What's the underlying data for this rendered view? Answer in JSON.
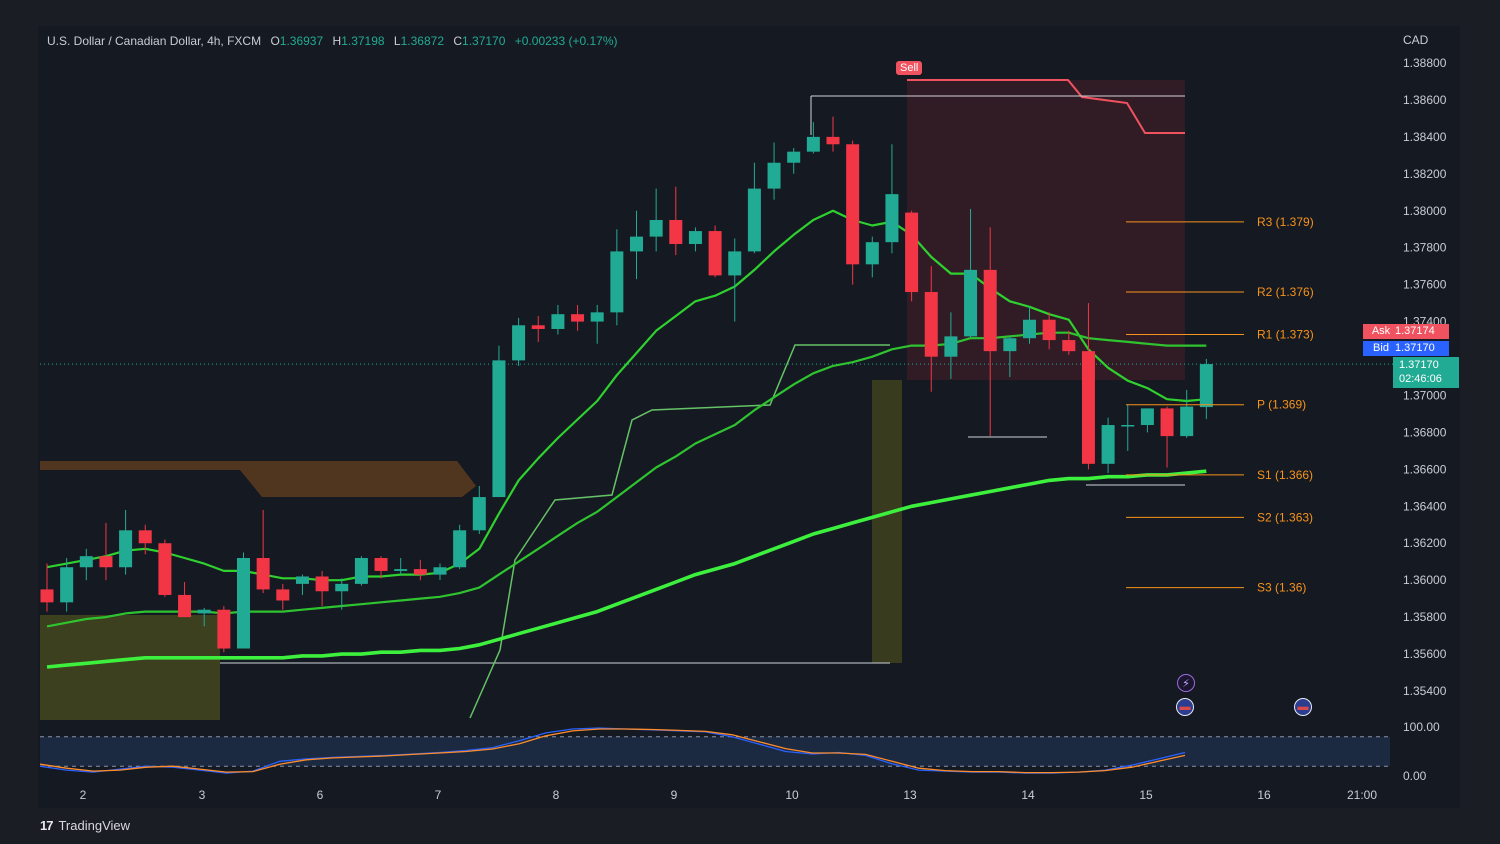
{
  "legend": {
    "symbol": "U.S. Dollar / Canadian Dollar, 4h, FXCM",
    "open_key": "O",
    "open": "1.36937",
    "high_key": "H",
    "high": "1.37198",
    "low_key": "L",
    "low": "1.36872",
    "close_key": "C",
    "close": "1.37170",
    "change": "+0.00233 (+0.17%)"
  },
  "currency": "CAD",
  "ask": {
    "label": "Ask",
    "value": "1.37174"
  },
  "bid": {
    "label": "Bid",
    "value": "1.37170"
  },
  "last": {
    "price": "1.37170",
    "countdown": "02:46:06"
  },
  "sell_label": "Sell",
  "brand": "TradingView",
  "colors": {
    "up": "#22ab94",
    "down": "#f23645",
    "ma": "#33cc33",
    "pivot": "#f7931a",
    "sell_zone": "#f23645"
  },
  "chart_data": {
    "type": "candlestick",
    "y_axis": {
      "ticks": [
        "1.38800",
        "1.38600",
        "1.38400",
        "1.38200",
        "1.38000",
        "1.37800",
        "1.37600",
        "1.37400",
        "1.37000",
        "1.36800",
        "1.36600",
        "1.36400",
        "1.36200",
        "1.36000",
        "1.35800",
        "1.35600",
        "1.35400"
      ],
      "ylim": [
        1.353,
        1.3895
      ]
    },
    "x_axis": {
      "labels": [
        "2",
        "3",
        "6",
        "7",
        "8",
        "9",
        "10",
        "13",
        "14",
        "15",
        "16",
        "21:00"
      ]
    },
    "candles": [
      {
        "x": 0,
        "o": 1.3595,
        "h": 1.3609,
        "l": 1.3583,
        "c": 1.3588
      },
      {
        "x": 1,
        "o": 1.3588,
        "h": 1.3612,
        "l": 1.3583,
        "c": 1.3607
      },
      {
        "x": 2,
        "o": 1.3607,
        "h": 1.3617,
        "l": 1.36,
        "c": 1.3613
      },
      {
        "x": 3,
        "o": 1.3613,
        "h": 1.3631,
        "l": 1.36,
        "c": 1.3607
      },
      {
        "x": 4,
        "o": 1.3607,
        "h": 1.3638,
        "l": 1.3603,
        "c": 1.3627
      },
      {
        "x": 5,
        "o": 1.3627,
        "h": 1.363,
        "l": 1.3614,
        "c": 1.362
      },
      {
        "x": 6,
        "o": 1.362,
        "h": 1.3622,
        "l": 1.3591,
        "c": 1.3592
      },
      {
        "x": 7,
        "o": 1.3592,
        "h": 1.3599,
        "l": 1.358,
        "c": 1.358
      },
      {
        "x": 8,
        "o": 1.3582,
        "h": 1.3585,
        "l": 1.3575,
        "c": 1.3584
      },
      {
        "x": 9,
        "o": 1.3584,
        "h": 1.3586,
        "l": 1.3561,
        "c": 1.3563
      },
      {
        "x": 10,
        "o": 1.3563,
        "h": 1.3615,
        "l": 1.3563,
        "c": 1.3612
      },
      {
        "x": 11,
        "o": 1.3612,
        "h": 1.3638,
        "l": 1.3593,
        "c": 1.3595
      },
      {
        "x": 12,
        "o": 1.3595,
        "h": 1.3598,
        "l": 1.3584,
        "c": 1.3589
      },
      {
        "x": 13,
        "o": 1.3598,
        "h": 1.3603,
        "l": 1.3592,
        "c": 1.3602
      },
      {
        "x": 14,
        "o": 1.3602,
        "h": 1.3605,
        "l": 1.3586,
        "c": 1.3594
      },
      {
        "x": 15,
        "o": 1.3594,
        "h": 1.3601,
        "l": 1.3584,
        "c": 1.3598
      },
      {
        "x": 16,
        "o": 1.3598,
        "h": 1.3613,
        "l": 1.3597,
        "c": 1.3612
      },
      {
        "x": 17,
        "o": 1.3612,
        "h": 1.3613,
        "l": 1.3601,
        "c": 1.3605
      },
      {
        "x": 18,
        "o": 1.3605,
        "h": 1.3612,
        "l": 1.3603,
        "c": 1.3606
      },
      {
        "x": 19,
        "o": 1.3606,
        "h": 1.3611,
        "l": 1.36,
        "c": 1.3603
      },
      {
        "x": 20,
        "o": 1.3603,
        "h": 1.3609,
        "l": 1.36,
        "c": 1.3607
      },
      {
        "x": 21,
        "o": 1.3607,
        "h": 1.363,
        "l": 1.3606,
        "c": 1.3627
      },
      {
        "x": 22,
        "o": 1.3627,
        "h": 1.3651,
        "l": 1.3625,
        "c": 1.3645
      },
      {
        "x": 23,
        "o": 1.3645,
        "h": 1.3727,
        "l": 1.3645,
        "c": 1.3719
      },
      {
        "x": 24,
        "o": 1.3719,
        "h": 1.3742,
        "l": 1.3716,
        "c": 1.3738
      },
      {
        "x": 25,
        "o": 1.3738,
        "h": 1.3743,
        "l": 1.3729,
        "c": 1.3736
      },
      {
        "x": 26,
        "o": 1.3736,
        "h": 1.3749,
        "l": 1.3733,
        "c": 1.3744
      },
      {
        "x": 27,
        "o": 1.3744,
        "h": 1.3749,
        "l": 1.3735,
        "c": 1.374
      },
      {
        "x": 28,
        "o": 1.374,
        "h": 1.3749,
        "l": 1.3728,
        "c": 1.3745
      },
      {
        "x": 29,
        "o": 1.3745,
        "h": 1.379,
        "l": 1.3738,
        "c": 1.3778
      },
      {
        "x": 30,
        "o": 1.3778,
        "h": 1.38,
        "l": 1.3763,
        "c": 1.3786
      },
      {
        "x": 31,
        "o": 1.3786,
        "h": 1.3812,
        "l": 1.3778,
        "c": 1.3795
      },
      {
        "x": 32,
        "o": 1.3795,
        "h": 1.3813,
        "l": 1.3776,
        "c": 1.3782
      },
      {
        "x": 33,
        "o": 1.3782,
        "h": 1.3791,
        "l": 1.3778,
        "c": 1.3789
      },
      {
        "x": 34,
        "o": 1.3789,
        "h": 1.3792,
        "l": 1.3764,
        "c": 1.3765
      },
      {
        "x": 35,
        "o": 1.3765,
        "h": 1.3785,
        "l": 1.374,
        "c": 1.3778
      },
      {
        "x": 36,
        "o": 1.3778,
        "h": 1.3826,
        "l": 1.3777,
        "c": 1.3812
      },
      {
        "x": 37,
        "o": 1.3812,
        "h": 1.3837,
        "l": 1.3806,
        "c": 1.3826
      },
      {
        "x": 38,
        "o": 1.3826,
        "h": 1.3834,
        "l": 1.382,
        "c": 1.3832
      },
      {
        "x": 39,
        "o": 1.3832,
        "h": 1.3848,
        "l": 1.3831,
        "c": 1.384
      },
      {
        "x": 40,
        "o": 1.384,
        "h": 1.3851,
        "l": 1.3832,
        "c": 1.3836
      },
      {
        "x": 41,
        "o": 1.3836,
        "h": 1.3838,
        "l": 1.376,
        "c": 1.3771
      },
      {
        "x": 42,
        "o": 1.3771,
        "h": 1.3786,
        "l": 1.3764,
        "c": 1.3783
      },
      {
        "x": 43,
        "o": 1.3783,
        "h": 1.3836,
        "l": 1.3777,
        "c": 1.3809
      },
      {
        "x": 44,
        "o": 1.3799,
        "h": 1.38,
        "l": 1.3751,
        "c": 1.3756
      },
      {
        "x": 45,
        "o": 1.3756,
        "h": 1.377,
        "l": 1.3702,
        "c": 1.3721
      },
      {
        "x": 46,
        "o": 1.3721,
        "h": 1.3745,
        "l": 1.3709,
        "c": 1.3732
      },
      {
        "x": 47,
        "o": 1.3732,
        "h": 1.3801,
        "l": 1.3731,
        "c": 1.3768
      },
      {
        "x": 48,
        "o": 1.3768,
        "h": 1.3791,
        "l": 1.3678,
        "c": 1.3724
      },
      {
        "x": 49,
        "o": 1.3724,
        "h": 1.3732,
        "l": 1.371,
        "c": 1.3731
      },
      {
        "x": 50,
        "o": 1.3731,
        "h": 1.3748,
        "l": 1.3728,
        "c": 1.3741
      },
      {
        "x": 51,
        "o": 1.3741,
        "h": 1.3745,
        "l": 1.3725,
        "c": 1.373
      },
      {
        "x": 52,
        "o": 1.373,
        "h": 1.3735,
        "l": 1.3722,
        "c": 1.3724
      },
      {
        "x": 53,
        "o": 1.3724,
        "h": 1.375,
        "l": 1.366,
        "c": 1.3663
      },
      {
        "x": 54,
        "o": 1.3663,
        "h": 1.3688,
        "l": 1.3658,
        "c": 1.3684
      },
      {
        "x": 55,
        "o": 1.3684,
        "h": 1.3695,
        "l": 1.367,
        "c": 1.3684
      },
      {
        "x": 56,
        "o": 1.3684,
        "h": 1.3693,
        "l": 1.368,
        "c": 1.3693
      },
      {
        "x": 57,
        "o": 1.3693,
        "h": 1.3694,
        "l": 1.3661,
        "c": 1.3678
      },
      {
        "x": 58,
        "o": 1.3678,
        "h": 1.3703,
        "l": 1.3677,
        "c": 1.3694
      },
      {
        "x": 59,
        "o": 1.36937,
        "h": 1.37198,
        "l": 1.36872,
        "c": 1.3717
      }
    ],
    "moving_averages": [
      {
        "values": [
          1.3607,
          1.3609,
          1.3611,
          1.3613,
          1.3616,
          1.3617,
          1.3615,
          1.3612,
          1.3609,
          1.3605,
          1.3605,
          1.3603,
          1.3601,
          1.3601,
          1.36,
          1.36,
          1.3602,
          1.3602,
          1.3603,
          1.3603,
          1.3604,
          1.3609,
          1.3617,
          1.3636,
          1.3654,
          1.3666,
          1.3677,
          1.3687,
          1.3697,
          1.3711,
          1.3723,
          1.3735,
          1.3743,
          1.3751,
          1.3754,
          1.3759,
          1.3768,
          1.3778,
          1.3787,
          1.3795,
          1.38,
          1.3795,
          1.3792,
          1.3794,
          1.3787,
          1.3775,
          1.3766,
          1.3766,
          1.3758,
          1.3751,
          1.3748,
          1.3744,
          1.3741,
          1.3725,
          1.3715,
          1.3708,
          1.3704,
          1.3698,
          1.3697,
          1.3698
        ]
      },
      {
        "values": [
          1.3575,
          1.3577,
          1.3579,
          1.358,
          1.3582,
          1.3583,
          1.3583,
          1.3583,
          1.3583,
          1.3582,
          1.3583,
          1.3583,
          1.3583,
          1.3584,
          1.3585,
          1.3586,
          1.3587,
          1.3588,
          1.3589,
          1.359,
          1.3591,
          1.3593,
          1.3596,
          1.3603,
          1.361,
          1.3617,
          1.3624,
          1.3631,
          1.3637,
          1.3645,
          1.3653,
          1.3661,
          1.3667,
          1.3674,
          1.3679,
          1.3684,
          1.3692,
          1.3699,
          1.3706,
          1.3712,
          1.3716,
          1.3718,
          1.3721,
          1.3725,
          1.3727,
          1.3727,
          1.3728,
          1.3731,
          1.3731,
          1.3732,
          1.3733,
          1.3734,
          1.3734,
          1.3731,
          1.373,
          1.3729,
          1.3728,
          1.3727,
          1.3727,
          1.3727
        ]
      },
      {
        "values": [
          1.3553,
          1.3554,
          1.3555,
          1.3556,
          1.3557,
          1.3558,
          1.3558,
          1.3558,
          1.3558,
          1.3558,
          1.3558,
          1.3558,
          1.3558,
          1.3559,
          1.3559,
          1.356,
          1.356,
          1.3561,
          1.3561,
          1.3562,
          1.3562,
          1.3563,
          1.3565,
          1.3568,
          1.3571,
          1.3574,
          1.3577,
          1.358,
          1.3583,
          1.3587,
          1.3591,
          1.3595,
          1.3599,
          1.3603,
          1.3606,
          1.3609,
          1.3613,
          1.3617,
          1.3621,
          1.3625,
          1.3628,
          1.3631,
          1.3634,
          1.3637,
          1.364,
          1.3642,
          1.3644,
          1.3646,
          1.3648,
          1.365,
          1.3652,
          1.3654,
          1.3655,
          1.3655,
          1.3656,
          1.3656,
          1.3657,
          1.3657,
          1.3658,
          1.3659
        ]
      }
    ],
    "pivot_levels": [
      {
        "label": "R3 (1.379)",
        "value": 1.3794
      },
      {
        "label": "R2 (1.376)",
        "value": 1.3756
      },
      {
        "label": "R1 (1.373)",
        "value": 1.3733
      },
      {
        "label": "P (1.369)",
        "value": 1.3695
      },
      {
        "label": "S1 (1.366)",
        "value": 1.3657
      },
      {
        "label": "S2 (1.363)",
        "value": 1.3634
      },
      {
        "label": "S3 (1.36)",
        "value": 1.3596
      }
    ],
    "stochastic": {
      "ticks": [
        "100.00",
        "0.00"
      ],
      "upper": 80,
      "lower": 20
    }
  }
}
